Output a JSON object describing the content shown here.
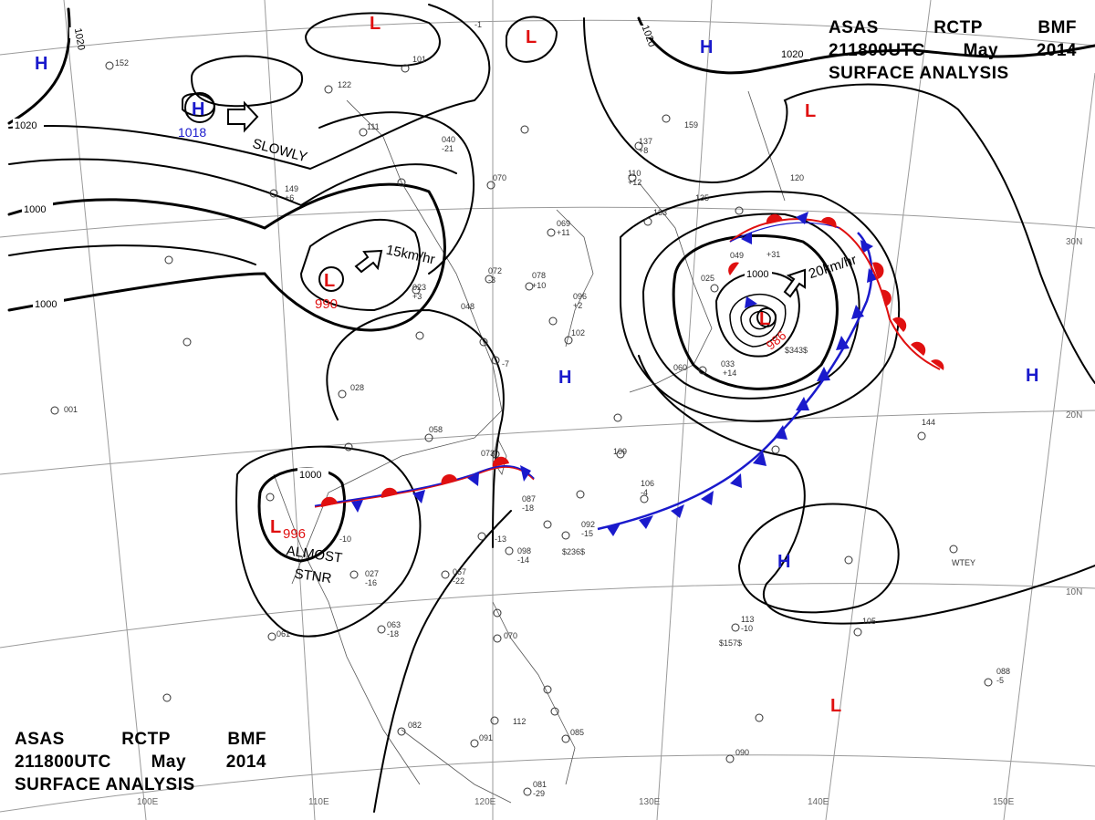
{
  "header_top": {
    "agency_line": [
      "ASAS",
      "RCTP",
      "BMF"
    ],
    "time_line": [
      "211800UTC",
      "May",
      "2014"
    ],
    "title": "SURFACE ANALYSIS"
  },
  "header_bottom": {
    "agency_line": [
      "ASAS",
      "RCTP",
      "BMF"
    ],
    "time_line": [
      "211800UTC",
      "May",
      "2014"
    ],
    "title": "SURFACE ANALYSIS"
  },
  "grid_labels": {
    "longitudes": [
      "110E",
      "120E",
      "130E",
      "140E",
      "150E",
      "100E"
    ],
    "latitudes": [
      "30N",
      "20N",
      "10N"
    ]
  },
  "isobar_labels": [
    "1020",
    "1020",
    "1020",
    "1020",
    "1000",
    "1000",
    "1000",
    "1000"
  ],
  "pressure_centers": [
    {
      "type": "H",
      "color": "#1a1acc"
    },
    {
      "type": "H",
      "color": "#1a1acc",
      "value": "1018"
    },
    {
      "type": "H",
      "color": "#1a1acc"
    },
    {
      "type": "H",
      "color": "#1a1acc"
    },
    {
      "type": "H",
      "color": "#1a1acc"
    },
    {
      "type": "H",
      "color": "#1a1acc"
    },
    {
      "type": "L",
      "color": "#e01010"
    },
    {
      "type": "L",
      "color": "#e01010"
    },
    {
      "type": "L",
      "color": "#e01010"
    },
    {
      "type": "L",
      "color": "#e01010",
      "value": "990"
    },
    {
      "type": "L",
      "color": "#e01010",
      "value": "996"
    },
    {
      "type": "L",
      "color": "#e01010",
      "value": "986"
    },
    {
      "type": "L",
      "color": "#e01010"
    }
  ],
  "motion_labels": [
    "SLOWLY",
    "15km/hr",
    "20km/hr",
    "ALMOST",
    "STNR"
  ],
  "colors": {
    "high": "#1a1acc",
    "low": "#e01010",
    "cold_front": "#1a1acc",
    "warm_front": "#e01010",
    "isobar": "#000000",
    "grid": "#9a9a9a"
  },
  "station_samples": [
    "152",
    "101",
    "122",
    "111",
    "040",
    "-21",
    "070",
    "069",
    "+11",
    "133",
    "135",
    "110",
    "+12",
    "137",
    "+8",
    "159",
    "120",
    "-1",
    "025",
    "049",
    "+31",
    "072",
    "-3",
    "078",
    "+10",
    "023",
    "+3",
    "048",
    "096",
    "+2",
    "102",
    "-7",
    "060",
    "033",
    "+14",
    "109",
    "106",
    "-4",
    "087",
    "-18",
    "092",
    "-15",
    "-13",
    "098",
    "-14",
    "067",
    "-22",
    "027",
    "-16",
    "063",
    "-18",
    "061",
    "073",
    "082",
    "091",
    "081",
    "-29",
    "085",
    "070",
    "112",
    "113",
    "-10",
    "105",
    "088",
    "-5",
    "090",
    "144",
    "028",
    "058",
    "001",
    "-10",
    "149",
    "+6",
    "$157$",
    "$236$",
    "$343$",
    "WTEY"
  ]
}
